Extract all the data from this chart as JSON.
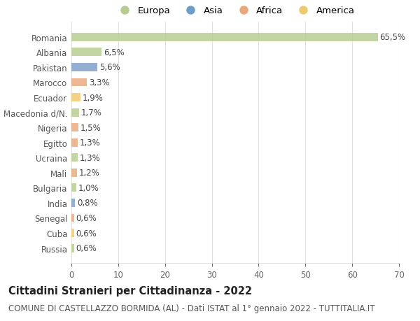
{
  "countries": [
    "Romania",
    "Albania",
    "Pakistan",
    "Marocco",
    "Ecuador",
    "Macedonia d/N.",
    "Nigeria",
    "Egitto",
    "Ucraina",
    "Mali",
    "Bulgaria",
    "India",
    "Senegal",
    "Cuba",
    "Russia"
  ],
  "values": [
    65.5,
    6.5,
    5.6,
    3.3,
    1.9,
    1.7,
    1.5,
    1.3,
    1.3,
    1.2,
    1.0,
    0.8,
    0.6,
    0.6,
    0.6
  ],
  "labels": [
    "65,5%",
    "6,5%",
    "5,6%",
    "3,3%",
    "1,9%",
    "1,7%",
    "1,5%",
    "1,3%",
    "1,3%",
    "1,2%",
    "1,0%",
    "0,8%",
    "0,6%",
    "0,6%",
    "0,6%"
  ],
  "colors": [
    "#b5cc8e",
    "#b5cc8e",
    "#7b9fc7",
    "#e8a87c",
    "#f0c96e",
    "#b5cc8e",
    "#e8a87c",
    "#e8a87c",
    "#b5cc8e",
    "#e8a87c",
    "#b5cc8e",
    "#7b9fc7",
    "#e8a87c",
    "#f0c96e",
    "#b5cc8e"
  ],
  "legend_labels": [
    "Europa",
    "Asia",
    "Africa",
    "America"
  ],
  "legend_colors": [
    "#b5cc8e",
    "#6b9ec8",
    "#e8a87c",
    "#f0c96e"
  ],
  "title": "Cittadini Stranieri per Cittadinanza - 2022",
  "subtitle": "COMUNE DI CASTELLAZZO BORMIDA (AL) - Dati ISTAT al 1° gennaio 2022 - TUTTITALIA.IT",
  "xlim": [
    0,
    70
  ],
  "xticks": [
    0,
    10,
    20,
    30,
    40,
    50,
    60,
    70
  ],
  "background_color": "#ffffff",
  "grid_color": "#e0e0e0",
  "title_fontsize": 10.5,
  "subtitle_fontsize": 8.5,
  "label_fontsize": 8.5,
  "tick_fontsize": 8.5,
  "legend_fontsize": 9.5
}
